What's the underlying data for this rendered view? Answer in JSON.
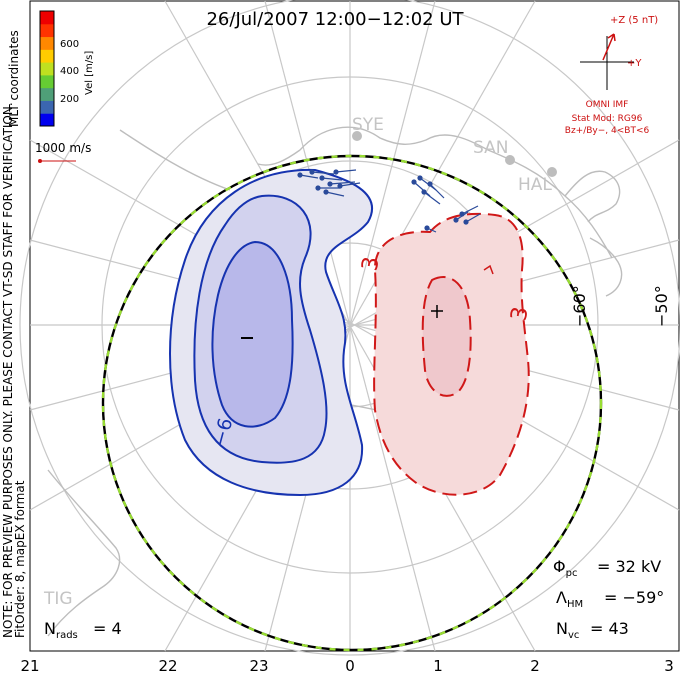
{
  "title": "26/Jul/2007 12:00−12:02 UT",
  "colorbar": {
    "label": "Vel [m/s]",
    "ticks": [
      "600",
      "400",
      "200"
    ],
    "colors": [
      "#0000ee",
      "#3b66b0",
      "#4f9f78",
      "#66cc33",
      "#bfe020",
      "#ffcc00",
      "#ff8800",
      "#ff3300",
      "#ee0000"
    ]
  },
  "coordinates": "MLT coordinates",
  "scale_vector": "1000 m/s",
  "vertical_note": "NOTE: FOR PREVIEW PURPOSES ONLY. PLEASE CONTACT VT-SD STAFF FOR VERIFICATION.",
  "fit_note": "FitOrder: 8, mapEX format",
  "imf": {
    "z_label": "+Z (5 nT)",
    "y_label": "+Y",
    "source": "OMNI IMF",
    "model_line1": "Stat Mod: RG96",
    "model_line2": "Bz+/By−, 4<BT<6"
  },
  "stations": [
    "SYE",
    "SAN",
    "HAL",
    "TIG"
  ],
  "lat_labels": [
    "−60°",
    "−50°"
  ],
  "contour_labels": [
    "−6",
    "3"
  ],
  "extrema": {
    "min": "−",
    "max": "+"
  },
  "stats": {
    "phi_pc": "32 kV",
    "lambda_hm": "−59°",
    "n_vc": "43",
    "n_rads": "4"
  },
  "mlt_ticks": [
    "21",
    "22",
    "23",
    "0",
    "1",
    "2",
    "3"
  ],
  "colors": {
    "negative_outer": "#e6e6f2",
    "negative_mid": "#d2d2ee",
    "negative_inner": "#b8b8ea",
    "negative_line": "#1633b0",
    "positive_outer": "#f6dada",
    "positive_inner": "#efc8cc",
    "positive_line": "#d01818",
    "grid": "#c8c8c8",
    "coast": "#bdbdbd",
    "vectors": "#2a4a9a"
  }
}
